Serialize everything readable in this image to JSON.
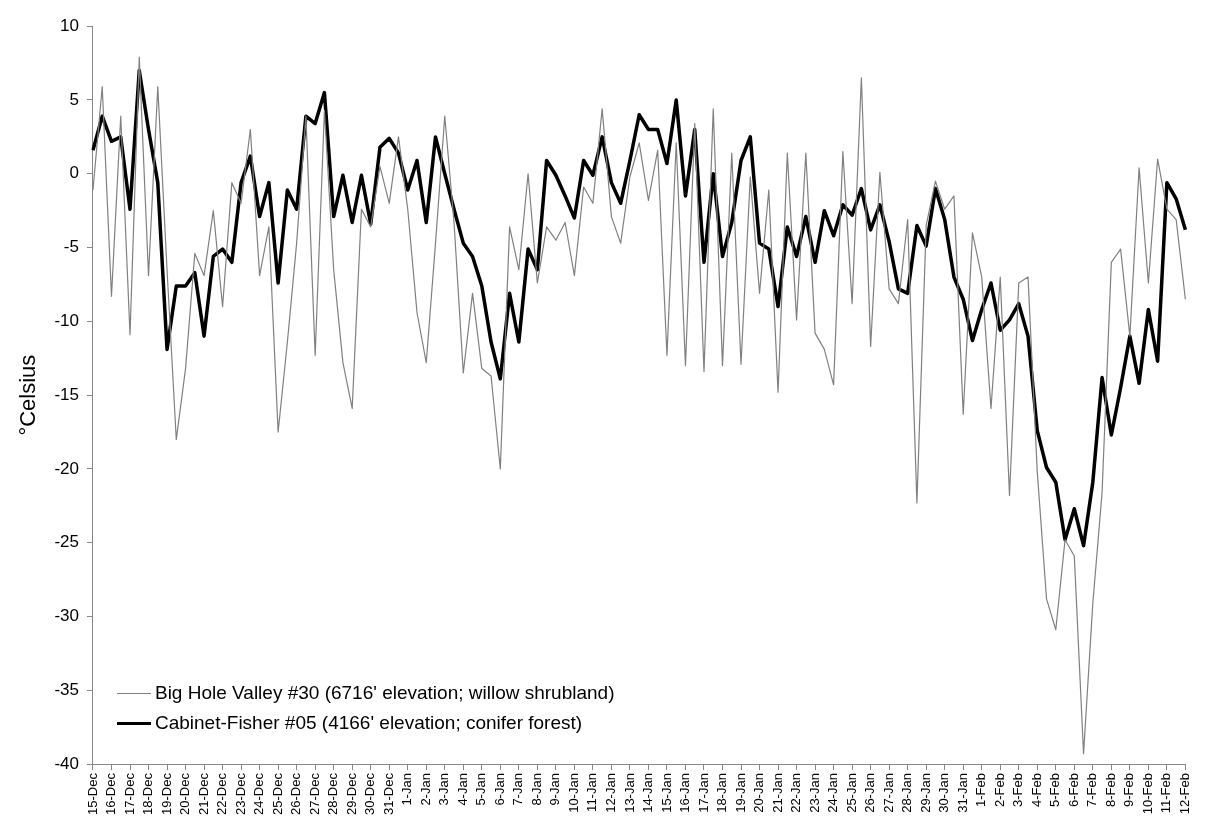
{
  "chart_data": {
    "type": "line",
    "ylabel": "°Celsius",
    "ylim": [
      -40,
      10
    ],
    "yticks": [
      -40,
      -35,
      -30,
      -25,
      -20,
      -15,
      -10,
      -5,
      0,
      5,
      10
    ],
    "categories": [
      "15-Dec",
      null,
      "16-Dec",
      null,
      "17-Dec",
      null,
      "18-Dec",
      null,
      "19-Dec",
      null,
      "20-Dec",
      null,
      "21-Dec",
      null,
      "22-Dec",
      null,
      "23-Dec",
      null,
      "24-Dec",
      null,
      "25-Dec",
      null,
      "26-Dec",
      null,
      "27-Dec",
      null,
      "28-Dec",
      null,
      "29-Dec",
      null,
      "30-Dec",
      null,
      "31-Dec",
      null,
      "1-Jan",
      null,
      "2-Jan",
      null,
      "3-Jan",
      null,
      "4-Jan",
      null,
      "5-Jan",
      null,
      "6-Jan",
      null,
      "7-Jan",
      null,
      "8-Jan",
      null,
      "9-Jan",
      null,
      "10-Jan",
      null,
      "11-Jan",
      null,
      "12-Jan",
      null,
      "13-Jan",
      null,
      "14-Jan",
      null,
      "15-Jan",
      null,
      "16-Jan",
      null,
      "17-Jan",
      null,
      "18-Jan",
      null,
      "19-Jan",
      null,
      "20-Jan",
      null,
      "21-Jan",
      null,
      "22-Jan",
      null,
      "23-Jan",
      null,
      "24-Jan",
      null,
      "25-Jan",
      null,
      "26-Jan",
      null,
      "27-Jan",
      null,
      "28-Jan",
      null,
      "29-Jan",
      null,
      "30-Jan",
      null,
      "31-Jan",
      null,
      "1-Feb",
      null,
      "2-Feb",
      null,
      "3-Feb",
      null,
      "4-Feb",
      null,
      "5-Feb",
      null,
      "6-Feb",
      null,
      "7-Feb",
      null,
      "8-Feb",
      null,
      "9-Feb",
      null,
      "10-Feb",
      null,
      "11-Feb",
      null,
      "12-Feb"
    ],
    "grid": false,
    "legend": "bottom left",
    "marker": "none",
    "line_style": "solid",
    "series": [
      {
        "name": "Big Hole Valley #30 (6716' elevation; willow shrubland)",
        "color": "#808080",
        "values": [
          -1.1,
          5.9,
          -8.3,
          3.9,
          -10.9,
          7.9,
          -6.9,
          5.9,
          -6.5,
          -18.0,
          -13.2,
          -5.4,
          -6.9,
          -2.5,
          -9.0,
          -0.6,
          -2.0,
          3.0,
          -6.9,
          -3.6,
          -17.5,
          -11.4,
          -4.7,
          3.9,
          -12.3,
          4.3,
          -6.5,
          -12.8,
          -15.9,
          -2.4,
          -3.6,
          0.5,
          -2.0,
          2.5,
          -2.4,
          -9.4,
          -12.8,
          -4.7,
          3.9,
          -3.3,
          -13.5,
          -8.1,
          -13.2,
          -13.7,
          -20.0,
          -3.6,
          -6.5,
          0.0,
          -7.4,
          -3.6,
          -4.5,
          -3.3,
          -6.9,
          -0.9,
          -2.0,
          4.4,
          -2.9,
          -4.7,
          -0.2,
          2.1,
          -1.8,
          1.6,
          -12.3,
          2.1,
          -13.0,
          3.4,
          -13.4,
          4.4,
          -13.0,
          1.4,
          -12.9,
          -0.2,
          -8.1,
          -1.1,
          -14.8,
          1.4,
          -9.9,
          1.4,
          -10.8,
          -11.9,
          -14.3,
          1.5,
          -8.8,
          6.5,
          -11.7,
          0.1,
          -7.8,
          -8.8,
          -3.1,
          -22.3,
          -3.5,
          -0.5,
          -2.4,
          -1.5,
          -16.3,
          -4.0,
          -7.0,
          -15.9,
          -7.0,
          -21.8,
          -7.4,
          -7.0,
          -20.2,
          -28.8,
          -30.9,
          -24.8,
          -25.9,
          -39.3,
          -29.1,
          -21.6,
          -6.0,
          -5.1,
          -11.0,
          0.4,
          -7.4,
          1.0,
          -2.4,
          -3.1,
          -8.5
        ]
      },
      {
        "name": "Cabinet-Fisher #05 (4166' elevation; conifer forest)",
        "color": "#000000",
        "values": [
          1.6,
          3.9,
          2.2,
          2.5,
          -2.4,
          7.0,
          3.0,
          -0.6,
          -11.9,
          -7.6,
          -7.6,
          -6.7,
          -11.0,
          -5.6,
          -5.1,
          -6.0,
          -0.6,
          1.2,
          -2.9,
          -0.6,
          -7.4,
          -1.1,
          -2.4,
          3.9,
          3.4,
          5.5,
          -2.9,
          -0.1,
          -3.3,
          -0.1,
          -3.4,
          1.8,
          2.4,
          1.4,
          -1.1,
          0.9,
          -3.3,
          2.5,
          0.0,
          -2.4,
          -4.7,
          -5.6,
          -7.6,
          -11.4,
          -13.9,
          -8.1,
          -11.4,
          -5.1,
          -6.5,
          0.9,
          -0.1,
          -1.5,
          -3.0,
          0.9,
          -0.1,
          2.5,
          -0.6,
          -2.0,
          0.9,
          4.0,
          3.0,
          3.0,
          0.7,
          5.0,
          -1.5,
          3.0,
          -6.0,
          0.0,
          -5.6,
          -3.3,
          0.9,
          2.5,
          -4.7,
          -5.1,
          -9.0,
          -3.6,
          -5.6,
          -2.9,
          -6.0,
          -2.5,
          -4.2,
          -2.1,
          -2.8,
          -1.0,
          -3.8,
          -2.1,
          -4.6,
          -7.8,
          -8.1,
          -3.5,
          -4.9,
          -1.0,
          -3.1,
          -7.0,
          -8.5,
          -11.3,
          -9.2,
          -7.4,
          -10.6,
          -9.9,
          -8.8,
          -11.0,
          -17.4,
          -19.9,
          -20.9,
          -24.8,
          -22.7,
          -25.2,
          -20.9,
          -13.8,
          -17.7,
          -14.5,
          -11.0,
          -14.2,
          -9.2,
          -12.7,
          -0.6,
          -1.7,
          -3.8
        ]
      }
    ]
  }
}
